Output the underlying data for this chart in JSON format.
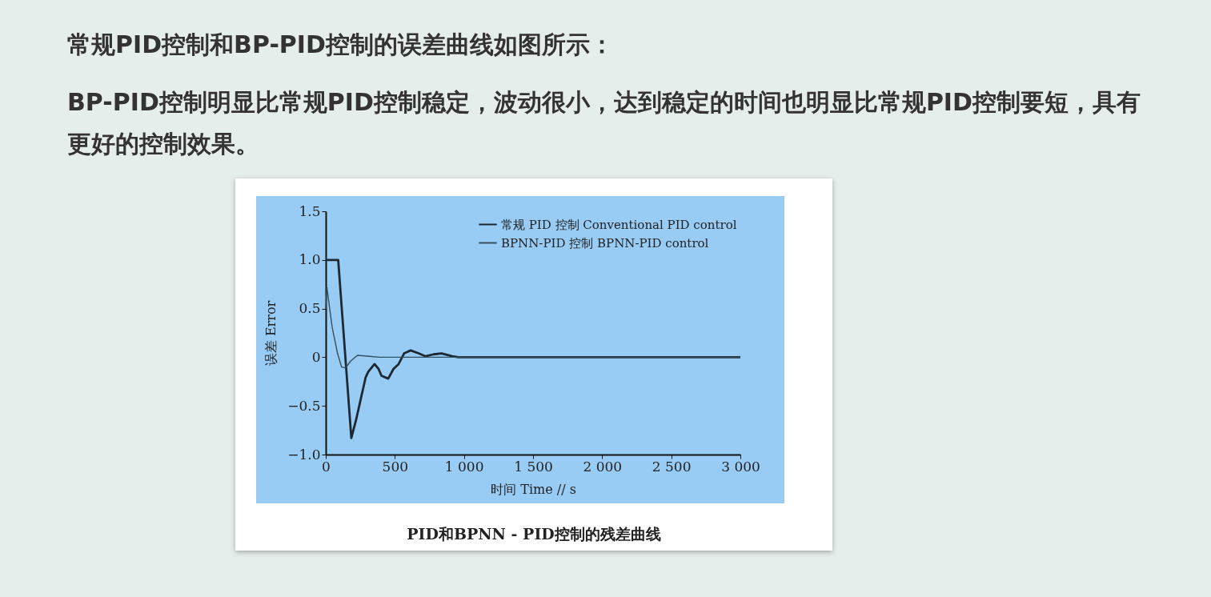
{
  "chart_data": {
    "type": "line",
    "title": "常规PID控制和BP-PID控制的误差曲线如图所示：",
    "subtitle": "BP-PID控制明显比常规PID控制稳定，波动很小，达到稳定的时间也明显比常规PID控制要短，具有更好的控制效果。",
    "xlabel": "时间 Time // s",
    "ylabel": "误差 Error",
    "series": [
      {
        "name": "常规 PID 控制 Conventional PID control",
        "color": "#1c2833",
        "x": [
          0,
          90,
          185,
          220,
          288,
          307,
          353,
          382,
          403,
          452,
          490,
          527,
          567,
          614,
          672,
          722,
          780,
          838,
          915,
          960,
          3000
        ],
        "values": [
          1.0,
          1.0,
          -0.83,
          -0.64,
          -0.21,
          -0.15,
          -0.07,
          -0.12,
          -0.19,
          -0.22,
          -0.12,
          -0.07,
          0.04,
          0.07,
          0.04,
          0.01,
          0.03,
          0.04,
          0.01,
          0,
          0
        ]
      },
      {
        "name": "BPNN-PID 控制 BPNN-PID control",
        "color": "#34505f",
        "x": [
          0,
          8,
          46,
          85,
          114,
          143,
          180,
          229,
          316,
          390,
          3000
        ],
        "values": [
          0.5,
          0.72,
          0.31,
          0.04,
          -0.1,
          -0.11,
          -0.04,
          0.02,
          0.01,
          0,
          0
        ]
      }
    ],
    "xlim": [
      0,
      3000
    ],
    "ylim": [
      -1,
      1.5
    ],
    "xticks": [
      0,
      500,
      {
        "value": 1000,
        "label": "1 000"
      },
      {
        "value": 1500,
        "label": "1 500"
      },
      {
        "value": 2000,
        "label": "2 000"
      },
      {
        "value": 2500,
        "label": "2 500"
      },
      {
        "value": 3000,
        "label": "3 000"
      }
    ],
    "yticks": [
      {
        "value": -1,
        "label": "−1.0"
      },
      {
        "value": -0.5,
        "label": "−0.5"
      },
      0,
      0.5,
      {
        "value": 1,
        "label": "1.0"
      },
      1.5
    ],
    "grid": false,
    "legend": "top right",
    "annotations": [
      "PID和BPNN - PID控制的残差曲线"
    ]
  }
}
